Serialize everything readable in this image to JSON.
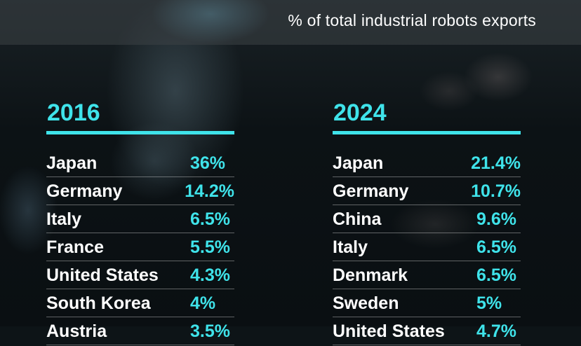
{
  "header": {
    "subtitle": "% of total industrial robots exports"
  },
  "left": {
    "year": "2016",
    "rows": [
      {
        "country": "Japan",
        "value": "36%"
      },
      {
        "country": "Germany",
        "value": "14.2%"
      },
      {
        "country": "Italy",
        "value": "6.5%"
      },
      {
        "country": "France",
        "value": "5.5%"
      },
      {
        "country": "United States",
        "value": "4.3%"
      },
      {
        "country": "South Korea",
        "value": "4%"
      },
      {
        "country": "Austria",
        "value": "3.5%"
      }
    ]
  },
  "right": {
    "year": "2024",
    "rows": [
      {
        "country": "Japan",
        "value": "21.4%"
      },
      {
        "country": "Germany",
        "value": "10.7%"
      },
      {
        "country": "China",
        "value": "9.6%"
      },
      {
        "country": "Italy",
        "value": "6.5%"
      },
      {
        "country": "Denmark",
        "value": "6.5%"
      },
      {
        "country": "Sweden",
        "value": "5%"
      },
      {
        "country": "United States",
        "value": "4.7%"
      }
    ]
  },
  "colors": {
    "accent": "#3fe3ea",
    "text": "#ffffff",
    "background": "#0d1417"
  }
}
